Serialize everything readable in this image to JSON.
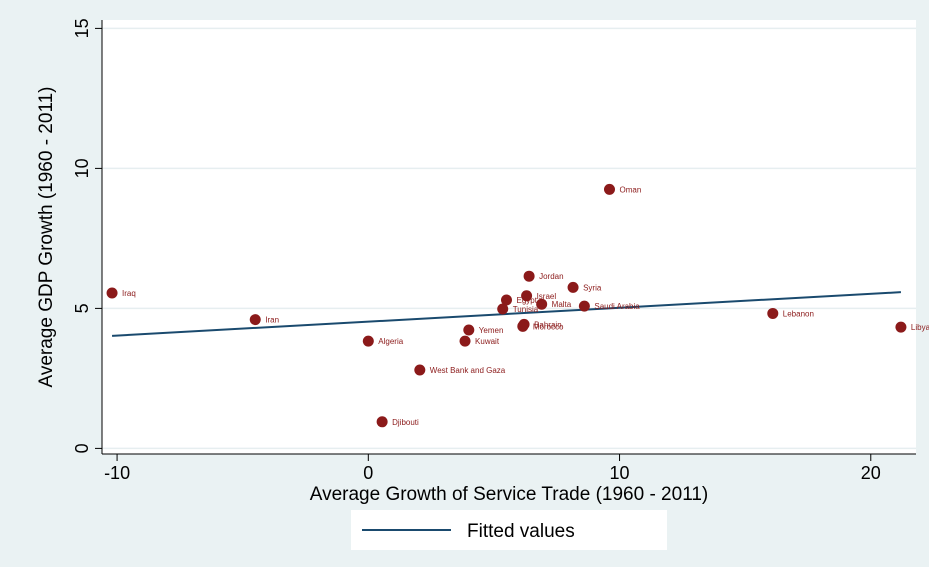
{
  "chart_data": {
    "type": "scatter",
    "title": "",
    "xlabel": "Average Growth of Service Trade (1960 - 2011)",
    "ylabel": "Average GDP Growth (1960 - 2011)",
    "xlim": [
      -10.6,
      21.8
    ],
    "ylim": [
      -0.2,
      15.3
    ],
    "xticks": [
      -10,
      0,
      10,
      20
    ],
    "yticks": [
      0,
      5,
      10,
      15
    ],
    "grid": true,
    "legend_position": "bottom",
    "colors": {
      "points": "#8b1a1a",
      "fit_line": "#1a4a6e",
      "plot_bg": "#ffffff",
      "page_bg": "#eaf2f3",
      "grid": "#e6eef0"
    },
    "points": [
      {
        "label": "Iraq",
        "x": -10.2,
        "y": 5.55
      },
      {
        "label": "Iran",
        "x": -4.5,
        "y": 4.6
      },
      {
        "label": "Algeria",
        "x": 0.0,
        "y": 3.83
      },
      {
        "label": "West Bank and Gaza",
        "x": 2.05,
        "y": 2.8
      },
      {
        "label": "Djibouti",
        "x": 0.55,
        "y": 0.95
      },
      {
        "label": "Yemen",
        "x": 4.0,
        "y": 4.23
      },
      {
        "label": "Kuwait",
        "x": 3.85,
        "y": 3.83
      },
      {
        "label": "Tunisia",
        "x": 5.35,
        "y": 4.98
      },
      {
        "label": "Egypt",
        "x": 5.5,
        "y": 5.3
      },
      {
        "label": "Israel",
        "x": 6.3,
        "y": 5.45
      },
      {
        "label": "Jordan",
        "x": 6.4,
        "y": 6.15
      },
      {
        "label": "Malta",
        "x": 6.9,
        "y": 5.15
      },
      {
        "label": "Bahrain",
        "x": 6.2,
        "y": 4.43
      },
      {
        "label": "Morocco",
        "x": 6.15,
        "y": 4.36
      },
      {
        "label": "Saudi Arabia",
        "x": 8.6,
        "y": 5.08
      },
      {
        "label": "Syria",
        "x": 8.15,
        "y": 5.75
      },
      {
        "label": "Oman",
        "x": 9.6,
        "y": 9.25
      },
      {
        "label": "Lebanon",
        "x": 16.1,
        "y": 4.82
      },
      {
        "label": "Libya",
        "x": 21.2,
        "y": 4.33
      }
    ],
    "series": [
      {
        "name": "Fitted values",
        "type": "line",
        "x": [
          -10.2,
          21.2
        ],
        "y": [
          4.02,
          5.58
        ]
      }
    ]
  }
}
